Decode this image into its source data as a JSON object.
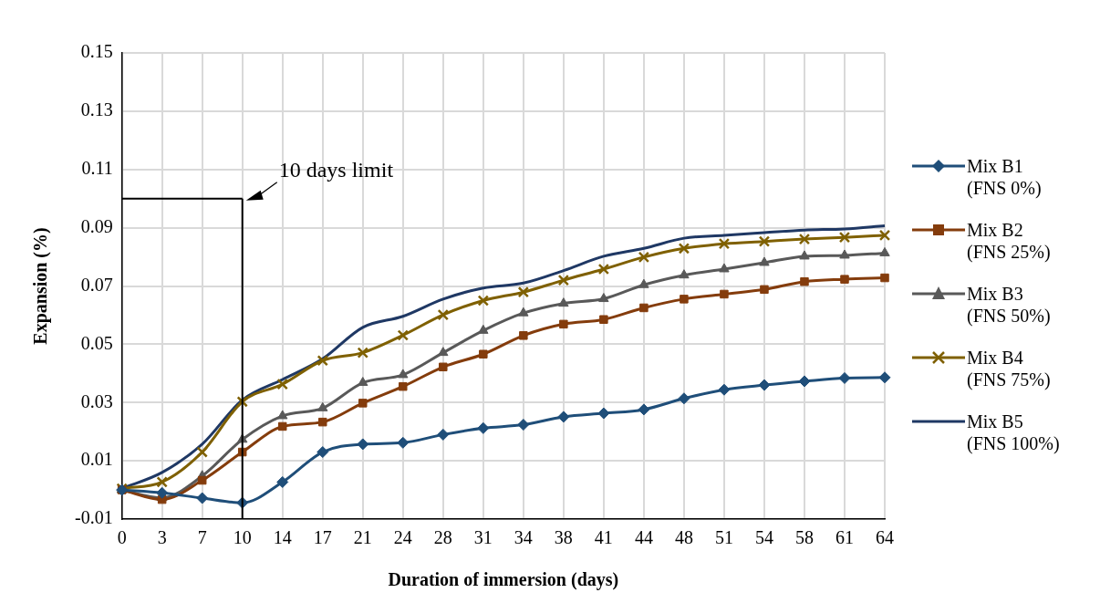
{
  "chart_data": {
    "type": "line",
    "xlabel": "Duration of immersion (days)",
    "ylabel": "Expansion (%)",
    "categories": [
      "0",
      "3",
      "7",
      "10",
      "14",
      "17",
      "21",
      "24",
      "28",
      "31",
      "34",
      "38",
      "41",
      "44",
      "48",
      "51",
      "54",
      "58",
      "61",
      "64"
    ],
    "series": [
      {
        "name": "Mix B1 (FNS 0%)",
        "color": "#1f4e79",
        "marker": "diamond",
        "values": [
          0.0,
          -0.001,
          -0.0028,
          -0.0044,
          0.0027,
          0.013,
          0.0157,
          0.0162,
          0.019,
          0.0212,
          0.0224,
          0.0251,
          0.0263,
          0.0276,
          0.0314,
          0.0344,
          0.036,
          0.0373,
          0.0384,
          0.0386
        ]
      },
      {
        "name": "Mix B2 (FNS 25%)",
        "color": "#843c0c",
        "marker": "square",
        "values": [
          0.0,
          -0.0033,
          0.0033,
          0.013,
          0.0218,
          0.0233,
          0.0298,
          0.0355,
          0.0422,
          0.0466,
          0.053,
          0.0569,
          0.0585,
          0.0625,
          0.0655,
          0.0672,
          0.0688,
          0.0715,
          0.0723,
          0.0728
        ]
      },
      {
        "name": "Mix B3 (FNS 50%)",
        "color": "#595959",
        "marker": "triangle",
        "values": [
          0.0,
          -0.0027,
          0.0048,
          0.0173,
          0.0254,
          0.0281,
          0.0368,
          0.0395,
          0.0471,
          0.0547,
          0.0607,
          0.064,
          0.0656,
          0.0704,
          0.0737,
          0.0758,
          0.078,
          0.0802,
          0.0805,
          0.0813
        ]
      },
      {
        "name": "Mix B4 (FNS 75%)",
        "color": "#7f6000",
        "marker": "cross",
        "values": [
          0.0005,
          0.0027,
          0.013,
          0.0303,
          0.0363,
          0.0444,
          0.0471,
          0.0531,
          0.0601,
          0.065,
          0.0679,
          0.072,
          0.0758,
          0.0799,
          0.0829,
          0.0845,
          0.0853,
          0.0861,
          0.0867,
          0.0874
        ]
      },
      {
        "name": "Mix B5 (FNS 100%)",
        "color": "#1f3864",
        "marker": "none",
        "values": [
          0.0005,
          0.006,
          0.0157,
          0.0309,
          0.0379,
          0.045,
          0.0558,
          0.0596,
          0.0655,
          0.0693,
          0.071,
          0.0753,
          0.0802,
          0.0829,
          0.0864,
          0.0874,
          0.0883,
          0.0892,
          0.0896,
          0.0907
        ]
      }
    ],
    "ylim": [
      -0.01,
      0.15
    ],
    "yticks": [
      -0.01,
      0.01,
      0.03,
      0.05,
      0.07,
      0.09,
      0.11,
      0.13,
      0.15
    ],
    "grid": true,
    "legend": "right",
    "ref_lines": [
      {
        "axis": "x",
        "value": "10",
        "label": "10 days limit",
        "color": "#000000"
      },
      {
        "axis": "y",
        "value": 0.1,
        "color": "#000000"
      }
    ]
  }
}
